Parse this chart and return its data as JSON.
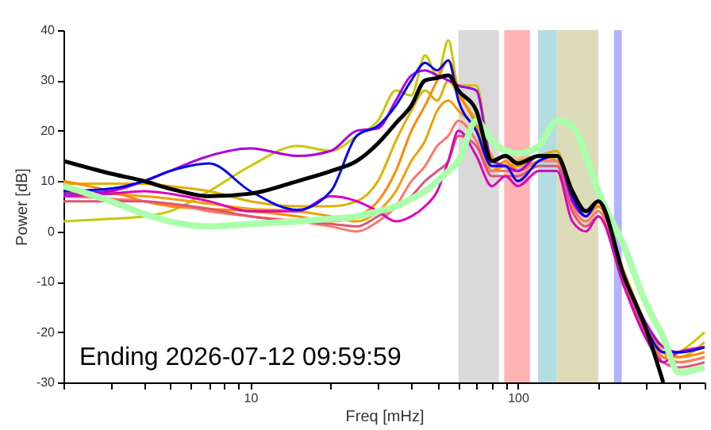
{
  "chart_data": {
    "type": "line",
    "xlabel": "Freq [mHz]",
    "ylabel": "Power [dB]",
    "annotations": [
      "Ending 2026-07-12 09:59:59"
    ],
    "log": "x",
    "xlim": [
      2,
      500
    ],
    "ylim": [
      -30,
      40
    ],
    "xticks": [
      {
        "value": 2,
        "label": null
      },
      {
        "value": 3,
        "label": null
      },
      {
        "value": 4,
        "label": null
      },
      {
        "value": 5,
        "label": null
      },
      {
        "value": 6,
        "label": null
      },
      {
        "value": 7,
        "label": null
      },
      {
        "value": 8,
        "label": null
      },
      {
        "value": 9,
        "label": null
      },
      10,
      {
        "value": 20,
        "label": null
      },
      {
        "value": 30,
        "label": null
      },
      {
        "value": 40,
        "label": null
      },
      {
        "value": 50,
        "label": null
      },
      {
        "value": 60,
        "label": null
      },
      {
        "value": 70,
        "label": null
      },
      {
        "value": 80,
        "label": null
      },
      {
        "value": 90,
        "label": null
      },
      100,
      {
        "value": 200,
        "label": null
      },
      {
        "value": 300,
        "label": null
      },
      {
        "value": 400,
        "label": null
      },
      {
        "value": 500,
        "label": null
      }
    ],
    "yticks": [
      -30,
      -20,
      -10,
      0,
      10,
      20,
      30,
      40
    ],
    "grid": false,
    "x": [
      2,
      3,
      4,
      5,
      7,
      10,
      15,
      20,
      25,
      30,
      35,
      40,
      45,
      50,
      55,
      60,
      70,
      80,
      90,
      100,
      120,
      140,
      160,
      180,
      200,
      250,
      300,
      350,
      400,
      500
    ],
    "bands": [
      {
        "axis": "x",
        "from": 60,
        "to": 85,
        "label": null,
        "color": "#d9d9d9"
      },
      {
        "axis": "x",
        "from": 89,
        "to": 111,
        "label": null,
        "color": "#ffb3b3"
      },
      {
        "axis": "x",
        "from": 119,
        "to": 140,
        "label": null,
        "color": "#b3dde0"
      },
      {
        "axis": "x",
        "from": 140,
        "to": 200,
        "label": null,
        "color": "#dcdcb8"
      },
      {
        "axis": "x",
        "from": 229,
        "to": 245,
        "label": null,
        "color": "#b3b3ff"
      }
    ],
    "series": [
      {
        "color": "#c8c800",
        "values": [
          2,
          2.5,
          3,
          4,
          8,
          13,
          17,
          16,
          19,
          22,
          28,
          27,
          35,
          31,
          38,
          29,
          29,
          14,
          13,
          12,
          15,
          14,
          6,
          4,
          5,
          -10,
          -20,
          -25,
          -24,
          -20
        ]
      },
      {
        "color": "#dcb000",
        "values": [
          9.5,
          9.5,
          9.5,
          9,
          8,
          6,
          5,
          5,
          6,
          10,
          18,
          24,
          28,
          26,
          30,
          27,
          22,
          15,
          13,
          14,
          15,
          16,
          7,
          4,
          5,
          -8,
          -18,
          -23,
          -25,
          -22
        ]
      },
      {
        "color": "#f0a000",
        "values": [
          8,
          7.5,
          7,
          6.5,
          5.5,
          4.5,
          4,
          3,
          2,
          4,
          8,
          14,
          18,
          24,
          26,
          24,
          20,
          12,
          13,
          13,
          15,
          14,
          7,
          4,
          5,
          -9,
          -19,
          -24,
          -26,
          -25
        ]
      },
      {
        "color": "#ff8800",
        "values": [
          10,
          8,
          6,
          5,
          4.5,
          4,
          3,
          2,
          3,
          6,
          12,
          20,
          25,
          30,
          34,
          28,
          21,
          12,
          14,
          12,
          14,
          15,
          6,
          3,
          5,
          -9,
          -18,
          -24,
          -25,
          -24
        ]
      },
      {
        "color": "#ff7766",
        "values": [
          7,
          6.5,
          6,
          5.5,
          4,
          3,
          2,
          1,
          0,
          2,
          5,
          10,
          13,
          17,
          19,
          22,
          18,
          12,
          12,
          12,
          14,
          14,
          5,
          2,
          4,
          -10,
          -19,
          -25,
          -26,
          -25
        ]
      },
      {
        "color": "#dd5577",
        "values": [
          6,
          6,
          6,
          5.5,
          4.5,
          3,
          2,
          1.5,
          1,
          3,
          5,
          7,
          10,
          12,
          14,
          19,
          17,
          11,
          11,
          11,
          13,
          13,
          4,
          1,
          3,
          -11,
          -20,
          -26,
          -27,
          -26
        ]
      },
      {
        "color": "#dd00bb",
        "values": [
          7,
          7.5,
          8,
          7.5,
          6,
          4,
          4,
          7,
          6,
          4,
          2,
          3,
          5,
          8,
          14,
          20,
          15,
          9,
          11,
          9,
          12,
          12,
          2,
          0,
          3,
          -11,
          -21,
          -26,
          -24,
          -23
        ]
      },
      {
        "color": "#aa00dd",
        "values": [
          7.5,
          8,
          10,
          12,
          15,
          16.5,
          15,
          16,
          20,
          20.5,
          26,
          31,
          32,
          31,
          30,
          29,
          28,
          14,
          13,
          12,
          15,
          15,
          6,
          3,
          6,
          -9,
          -18,
          -23,
          -24,
          -23
        ]
      },
      {
        "color": "#0000ee",
        "values": [
          8,
          8.5,
          10,
          12,
          13.5,
          8,
          4.3,
          8,
          19,
          21,
          25,
          30,
          33.5,
          32,
          34,
          26,
          20,
          13,
          13,
          10,
          14,
          15,
          7,
          3,
          6,
          -9,
          -19,
          -24,
          -24,
          -23
        ]
      },
      {
        "color": "#aaffaa",
        "values": [
          9,
          6,
          3.5,
          2,
          1,
          1.5,
          2,
          2.5,
          3,
          4,
          5,
          6.5,
          8,
          10,
          12,
          14,
          22,
          18,
          16,
          15.5,
          17,
          22,
          21,
          15,
          8,
          -3,
          -14,
          -21,
          -28,
          -27
        ]
      },
      {
        "color": "#000000",
        "values": [
          14,
          11.5,
          10,
          8.5,
          7,
          7.5,
          10,
          12,
          14,
          17.5,
          21.5,
          25,
          30,
          30.5,
          31,
          28,
          24,
          14,
          15,
          13.5,
          15,
          15,
          8,
          4,
          6,
          -9,
          -19,
          -30,
          null,
          null
        ]
      }
    ]
  }
}
